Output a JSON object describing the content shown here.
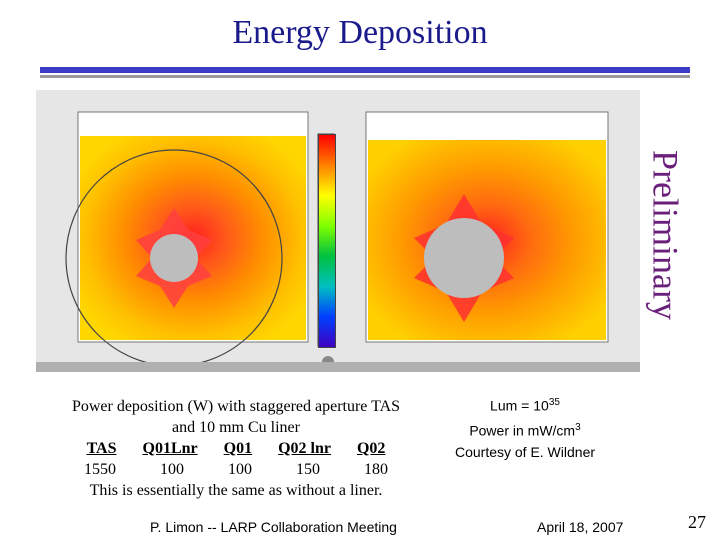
{
  "slide": {
    "title": "Energy Deposition",
    "stamp": "Preliminary",
    "caption_line1": "Power deposition (W) with staggered aperture TAS",
    "caption_line2": "and 10 mm Cu liner",
    "table_headers": [
      "TAS",
      "Q01Lnr",
      "Q01",
      "Q02 lnr",
      "Q02"
    ],
    "table_values": [
      "1550",
      "100",
      "100",
      "150",
      "180"
    ],
    "caption_line4": "This is essentially the same as without a liner.",
    "lum_label": "Lum = 10",
    "lum_exp": "35",
    "power_label": "Power in mW/cm",
    "power_exp": "3",
    "courtesy": "Courtesy of E. Wildner",
    "footer_author": "P. Limon -- LARP Collaboration Meeting",
    "footer_date": "April 18, 2007",
    "page_number": "27"
  },
  "colors": {
    "title": "#1a1a8c",
    "rule": "#3b3bc6",
    "aperture": "#bdbdbd",
    "heat_hot": "#ff2020",
    "heat_warm": "#ff8c00",
    "heat_cool": "#ffd700"
  }
}
